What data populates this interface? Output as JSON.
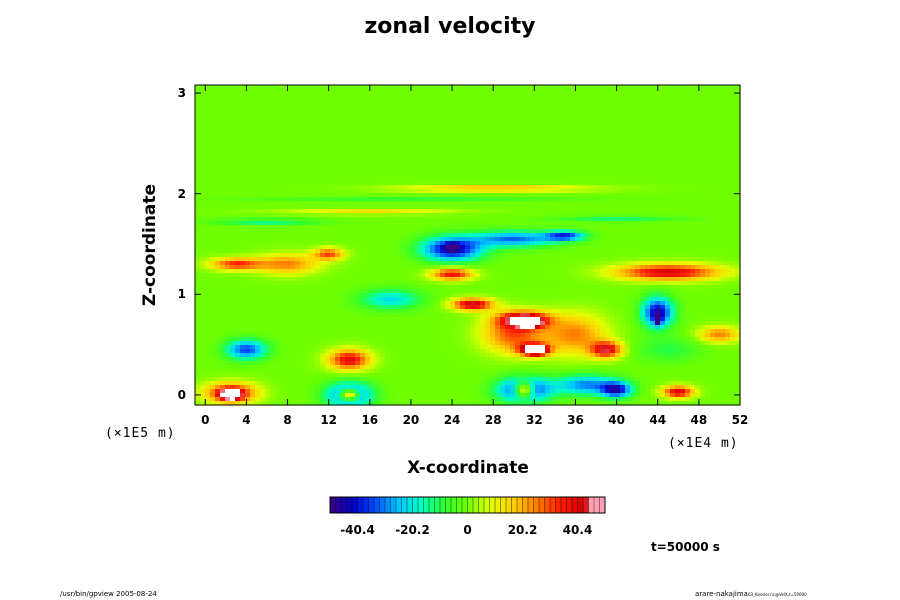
{
  "figure": {
    "title": "zonal velocity",
    "time_label": "t=50000 s",
    "footer_left": "/usr/bin/gpview 2005-08-24",
    "footer_right_main": "arare-nakajima",
    "footer_right_small": "03_Kessler.nc@VelX,t=50000"
  },
  "colorbar": {
    "tick_labels": [
      "-40.4",
      "-20.2",
      "0",
      "20.2",
      "40.4"
    ],
    "tick_values": [
      -40.4,
      -20.2,
      0,
      20.2,
      40.4
    ],
    "range": [
      -50.5,
      50.5
    ],
    "num_bands": 50,
    "palette": [
      "#3a0080",
      "#0000c8",
      "#0050ff",
      "#00c8ff",
      "#00ffc0",
      "#30ff30",
      "#70ff00",
      "#e0ff00",
      "#ffd000",
      "#ff8000",
      "#ff2000",
      "#d80000",
      "#ffa0b4"
    ]
  },
  "chart_data": {
    "type": "heatmap",
    "title": "zonal velocity",
    "xlabel": "X-coordinate",
    "ylabel": "Z-coordinate",
    "x_scale_label": "(×1E4 m)",
    "y_scale_label": "(×1E5 m)",
    "x_range": [
      -1,
      52
    ],
    "y_range": [
      -0.1,
      3.08
    ],
    "x_ticks": [
      0,
      4,
      8,
      12,
      16,
      20,
      24,
      28,
      32,
      36,
      40,
      44,
      48,
      52
    ],
    "y_ticks": [
      0,
      1,
      2,
      3
    ],
    "x_tick_labels": [
      "0",
      "4",
      "8",
      "12",
      "16",
      "20",
      "24",
      "28",
      "32",
      "36",
      "40",
      "44",
      "48",
      "52"
    ],
    "y_tick_labels": [
      "0",
      "1",
      "2",
      "3"
    ],
    "background_value": 0,
    "features": [
      {
        "x": 28,
        "z": 2.05,
        "rx": 9,
        "rz": 0.03,
        "v": 22
      },
      {
        "x": 6,
        "z": 1.72,
        "rx": 5,
        "rz": 0.03,
        "v": -15
      },
      {
        "x": 40,
        "z": 1.75,
        "rx": 6,
        "rz": 0.03,
        "v": -12
      },
      {
        "x": 16,
        "z": 1.82,
        "rx": 8,
        "rz": 0.025,
        "v": 15
      },
      {
        "x": 20,
        "z": 1.95,
        "rx": 15,
        "rz": 0.02,
        "v": -8
      },
      {
        "x": 3,
        "z": 1.3,
        "rx": 2.5,
        "rz": 0.06,
        "v": 33
      },
      {
        "x": 12,
        "z": 1.4,
        "rx": 1.5,
        "rz": 0.06,
        "v": 30
      },
      {
        "x": 8,
        "z": 1.3,
        "rx": 3,
        "rz": 0.1,
        "v": 25
      },
      {
        "x": 24,
        "z": 1.45,
        "rx": 3,
        "rz": 0.12,
        "v": -45
      },
      {
        "x": 24,
        "z": 1.47,
        "rx": 0.5,
        "rz": 0.03,
        "v": -52
      },
      {
        "x": 30,
        "z": 1.55,
        "rx": 4,
        "rz": 0.08,
        "v": -32
      },
      {
        "x": 35,
        "z": 1.58,
        "rx": 2,
        "rz": 0.05,
        "v": -35
      },
      {
        "x": 45,
        "z": 1.22,
        "rx": 5,
        "rz": 0.08,
        "v": 42
      },
      {
        "x": 24,
        "z": 1.2,
        "rx": 2,
        "rz": 0.06,
        "v": 38
      },
      {
        "x": 26,
        "z": 0.9,
        "rx": 2,
        "rz": 0.06,
        "v": 45
      },
      {
        "x": 31,
        "z": 0.75,
        "rx": 2.5,
        "rz": 0.08,
        "v": 48
      },
      {
        "x": 31.5,
        "z": 0.72,
        "rx": 1,
        "rz": 0.04,
        "v": 53
      },
      {
        "x": 30,
        "z": 0.6,
        "rx": 3,
        "rz": 0.18,
        "v": 30
      },
      {
        "x": 32,
        "z": 0.45,
        "rx": 1.5,
        "rz": 0.06,
        "v": 50
      },
      {
        "x": 32.2,
        "z": 0.44,
        "rx": 0.8,
        "rz": 0.035,
        "v": 53
      },
      {
        "x": 36,
        "z": 0.6,
        "rx": 3,
        "rz": 0.2,
        "v": 25
      },
      {
        "x": 39,
        "z": 0.45,
        "rx": 1.5,
        "rz": 0.08,
        "v": 42
      },
      {
        "x": 4,
        "z": 0.45,
        "rx": 2,
        "rz": 0.1,
        "v": -35
      },
      {
        "x": 18,
        "z": 0.95,
        "rx": 3,
        "rz": 0.1,
        "v": -22
      },
      {
        "x": 14,
        "z": 0.35,
        "rx": 2,
        "rz": 0.1,
        "v": 40
      },
      {
        "x": 2.5,
        "z": 0.02,
        "rx": 2.5,
        "rz": 0.1,
        "v": 40
      },
      {
        "x": 2.5,
        "z": 0.0,
        "rx": 1,
        "rz": 0.05,
        "v": 48
      },
      {
        "x": 14,
        "z": 0.0,
        "rx": 2.2,
        "rz": 0.12,
        "v": -42
      },
      {
        "x": 14,
        "z": 0.0,
        "rx": 1,
        "rz": 0.06,
        "v": 53
      },
      {
        "x": 31,
        "z": 0.05,
        "rx": 2.5,
        "rz": 0.12,
        "v": -46
      },
      {
        "x": 31,
        "z": 0.05,
        "rx": 1,
        "rz": 0.08,
        "v": 53
      },
      {
        "x": 37,
        "z": 0.1,
        "rx": 3,
        "rz": 0.1,
        "v": -30
      },
      {
        "x": 40,
        "z": 0.05,
        "rx": 1.5,
        "rz": 0.08,
        "v": -40
      },
      {
        "x": 46,
        "z": 0.03,
        "rx": 1.5,
        "rz": 0.06,
        "v": 42
      },
      {
        "x": 44,
        "z": 0.82,
        "rx": 1.5,
        "rz": 0.15,
        "v": -45
      },
      {
        "x": 44,
        "z": 0.75,
        "rx": 0.3,
        "rz": 0.05,
        "v": -52
      },
      {
        "x": 50,
        "z": 0.6,
        "rx": 2,
        "rz": 0.08,
        "v": 25
      },
      {
        "x": 45,
        "z": 0.45,
        "rx": 3,
        "rz": 0.12,
        "v": -10
      }
    ]
  }
}
